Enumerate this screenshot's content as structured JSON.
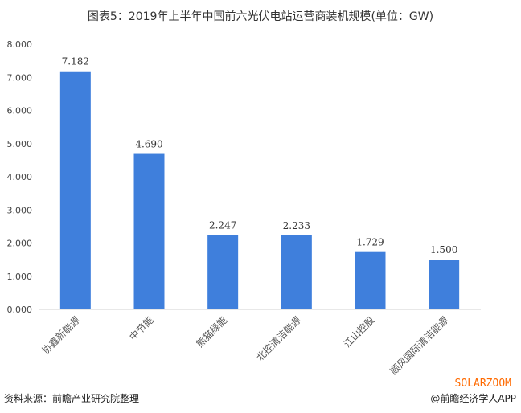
{
  "chart_data": {
    "type": "bar",
    "title": "图表5：2019年上半年中国前六光伏电站运营商装机规模(单位：GW)",
    "categories": [
      "协鑫新能源",
      "中节能",
      "熊猫绿能",
      "北控清洁能源",
      "江山控股",
      "顺风国际清洁能源"
    ],
    "values": [
      7.182,
      4.69,
      2.247,
      2.233,
      1.729,
      1.5
    ],
    "data_labels": [
      "7.182",
      "4.690",
      "2.247",
      "2.233",
      "1.729",
      "1.500"
    ],
    "ylim": [
      0,
      8
    ],
    "yticks": [
      "0.000",
      "1.000",
      "2.000",
      "3.000",
      "4.000",
      "5.000",
      "6.000",
      "7.000",
      "8.000"
    ],
    "grid": false,
    "bar_color": "#3f7fdc"
  },
  "footer": {
    "source": "资料来源：前瞻产业研究院整理",
    "brand": "SOLARZOOM",
    "credit": "@前瞻经济学人APP"
  }
}
